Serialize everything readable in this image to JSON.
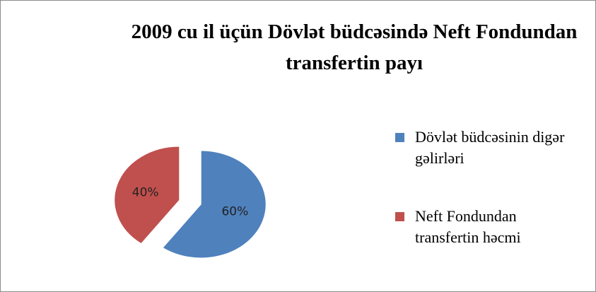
{
  "chart_data": {
    "type": "pie",
    "title": "2009 cu il üçün Dövlət büdcəsində Neft Fondundan transfertin payı",
    "categories": [
      "Dövlət büdcəsinin digər gəlirləri",
      "Neft Fondundan transfertin həcmi"
    ],
    "values": [
      60,
      40
    ],
    "value_labels": [
      "60%",
      "40%"
    ],
    "colors": [
      "#4f81bd",
      "#c0504d"
    ],
    "legend": "right"
  }
}
